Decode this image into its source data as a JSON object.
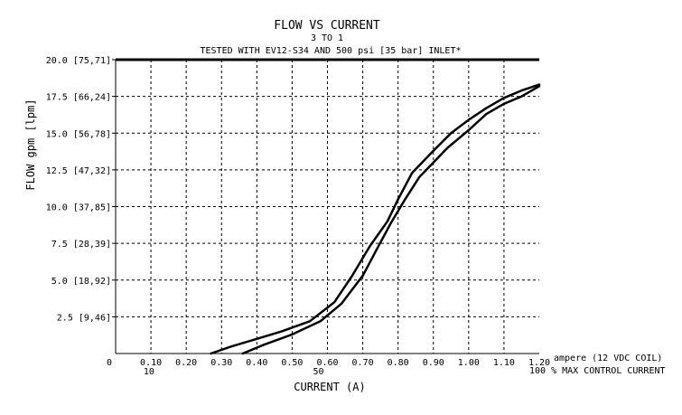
{
  "chart_data": {
    "type": "line",
    "title": "FLOW VS CURRENT",
    "subtitle": "3 TO 1",
    "note": "TESTED WITH EV12-S34 AND 500 psi [35 bar] INLET*",
    "xlabel": "CURRENT (A)",
    "ylabel": "FLOW gpm [lpm]",
    "x_unit_label": "ampere (12 VDC COIL)",
    "x_percent_label": "100 % MAX CONTROL CURRENT",
    "xlim": [
      0,
      1.2
    ],
    "ylim": [
      0,
      20
    ],
    "grid": true,
    "x_ticks": [
      {
        "value": 0,
        "label": "0"
      },
      {
        "value": 0.1,
        "label": "0.10"
      },
      {
        "value": 0.2,
        "label": "0.20"
      },
      {
        "value": 0.3,
        "label": "0.30"
      },
      {
        "value": 0.4,
        "label": "0.40"
      },
      {
        "value": 0.5,
        "label": "0.50"
      },
      {
        "value": 0.6,
        "label": "0.60"
      },
      {
        "value": 0.7,
        "label": "0.70"
      },
      {
        "value": 0.8,
        "label": "0.80"
      },
      {
        "value": 0.9,
        "label": "0.90"
      },
      {
        "value": 1.0,
        "label": "1.00"
      },
      {
        "value": 1.1,
        "label": "1.10"
      },
      {
        "value": 1.2,
        "label": "1.20"
      }
    ],
    "x_percent_ticks": [
      {
        "value": 0.12,
        "label": "10"
      },
      {
        "value": 0.6,
        "label": "50"
      }
    ],
    "y_ticks": [
      {
        "value": 2.5,
        "label": "2.5 [9,46]"
      },
      {
        "value": 5.0,
        "label": "5.0 [18,92]"
      },
      {
        "value": 7.5,
        "label": "7.5 [28,39]"
      },
      {
        "value": 10.0,
        "label": "10.0 [37,85]"
      },
      {
        "value": 12.5,
        "label": "12.5 [47,32]"
      },
      {
        "value": 15.0,
        "label": "15.0 [56,78]"
      },
      {
        "value": 17.5,
        "label": "17.5 [66,24]"
      },
      {
        "value": 20.0,
        "label": "20.0 [75,71]"
      }
    ],
    "series": [
      {
        "x": [
          0.27,
          0.33,
          0.4,
          0.47,
          0.55,
          0.62,
          0.67,
          0.72,
          0.77,
          0.8,
          0.84,
          0.9,
          0.95,
          1.0,
          1.05,
          1.1,
          1.15,
          1.2
        ],
        "y": [
          0.0,
          0.5,
          1.0,
          1.5,
          2.2,
          3.5,
          5.3,
          7.3,
          9.0,
          10.5,
          12.3,
          13.8,
          15.0,
          15.9,
          16.7,
          17.4,
          17.9,
          18.3
        ]
      },
      {
        "x": [
          0.36,
          0.42,
          0.5,
          0.58,
          0.64,
          0.7,
          0.74,
          0.78,
          0.82,
          0.86,
          0.9,
          0.94,
          1.0,
          1.05,
          1.1,
          1.15,
          1.2
        ],
        "y": [
          0.0,
          0.6,
          1.3,
          2.2,
          3.4,
          5.3,
          7.1,
          8.9,
          10.5,
          12.0,
          13.0,
          14.0,
          15.2,
          16.3,
          17.0,
          17.5,
          18.2
        ]
      }
    ]
  }
}
